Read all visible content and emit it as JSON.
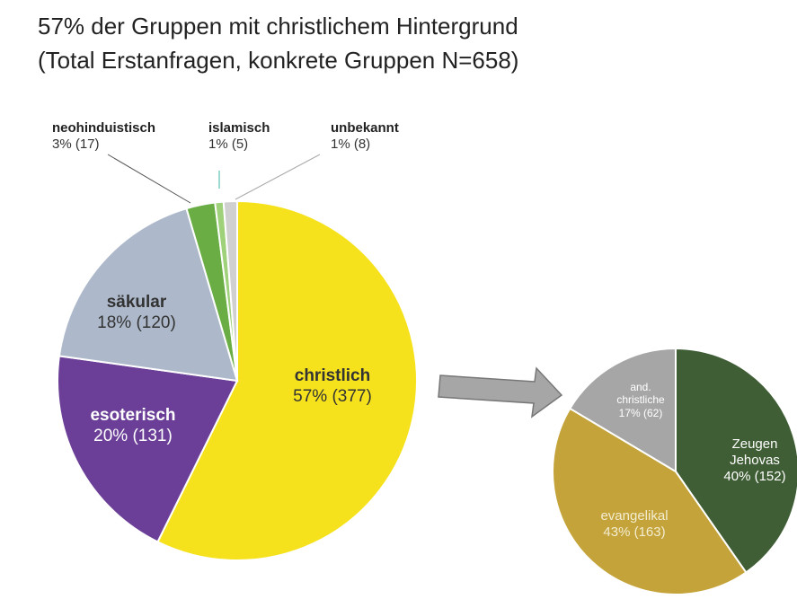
{
  "title": "57% der Gruppen mit christlichem Hintergrund",
  "subtitle": "(Total Erstanfragen, konkrete Gruppen N=658)",
  "chart_data": [
    {
      "type": "pie",
      "categories": [
        "christlich",
        "esoterisch",
        "säkular",
        "neohinduistisch",
        "islamisch",
        "unbekannt"
      ],
      "values": [
        377,
        131,
        120,
        17,
        5,
        8
      ],
      "value_labels": [
        "57% (377)",
        "20% (131)",
        "18% (120)",
        "3% (17)",
        "1% (5)",
        "1% (8)"
      ],
      "colors": [
        "#f6e21c",
        "#6b3f98",
        "#adb9ca",
        "#6aad45",
        "#9fd17b",
        "#d0d0d0"
      ]
    },
    {
      "type": "pie",
      "categories": [
        "Zeugen Jehovas",
        "evangelikal",
        "and. christliche"
      ],
      "values": [
        152,
        163,
        62
      ],
      "value_labels": [
        "40% (152)",
        "43% (163)",
        "17% (62)"
      ],
      "colors": [
        "#3f5e35",
        "#c4a43a",
        "#a6a6a6"
      ]
    }
  ]
}
